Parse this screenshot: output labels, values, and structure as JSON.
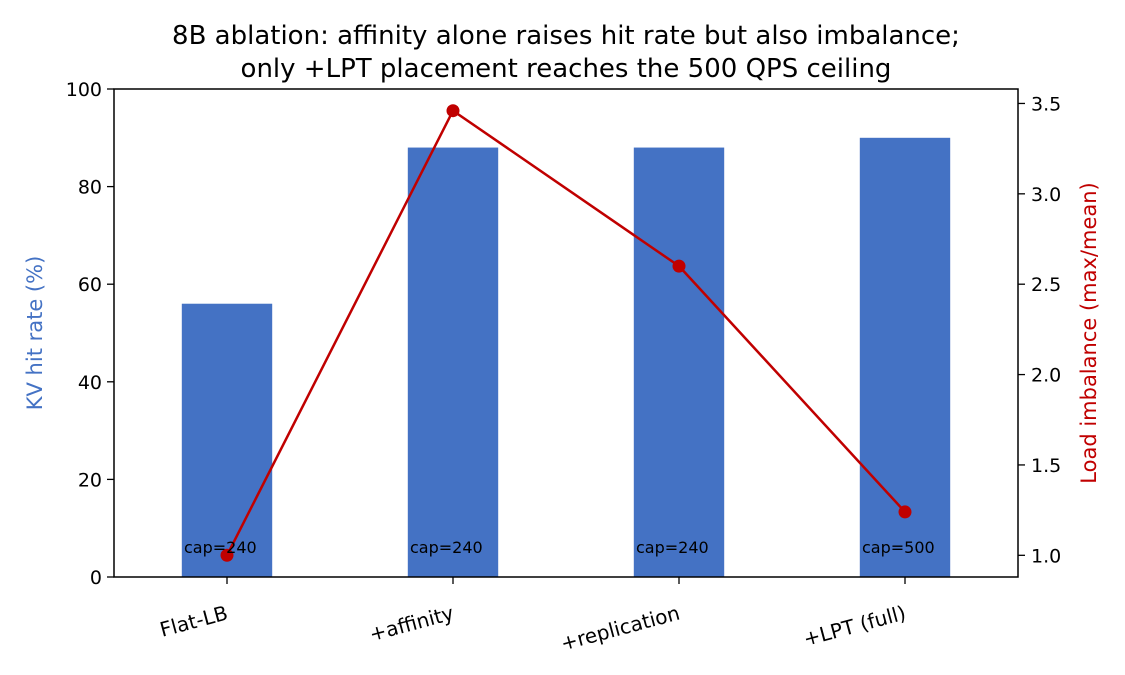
{
  "chart_data": {
    "type": "bar",
    "title_lines": [
      "8B ablation: affinity alone raises hit rate but also imbalance;",
      "only +LPT placement reaches the 500 QPS ceiling"
    ],
    "categories": [
      "Flat-LB",
      "+affinity",
      "+replication",
      "+LPT (full)"
    ],
    "series": [
      {
        "name": "KV hit rate (%)",
        "kind": "bar",
        "axis": "left",
        "color": "#4472c4",
        "values": [
          56,
          88,
          88,
          90
        ]
      },
      {
        "name": "Load imbalance (max/mean)",
        "kind": "line",
        "axis": "right",
        "color": "#c00000",
        "values": [
          1.0,
          3.46,
          2.6,
          1.24
        ]
      }
    ],
    "annotations": [
      "cap=240",
      "cap=240",
      "cap=240",
      "cap=500"
    ],
    "ylabel": "KV hit rate (%)",
    "ylabel_right": "Load imbalance (max/mean)",
    "ylim": [
      0,
      100
    ],
    "ylim_right": [
      0.88,
      3.58
    ],
    "yticks": [
      "0",
      "20",
      "40",
      "60",
      "80",
      "100"
    ],
    "yticks_right": [
      "1.0",
      "1.5",
      "2.0",
      "2.5",
      "3.0",
      "3.5"
    ],
    "grid": false
  }
}
